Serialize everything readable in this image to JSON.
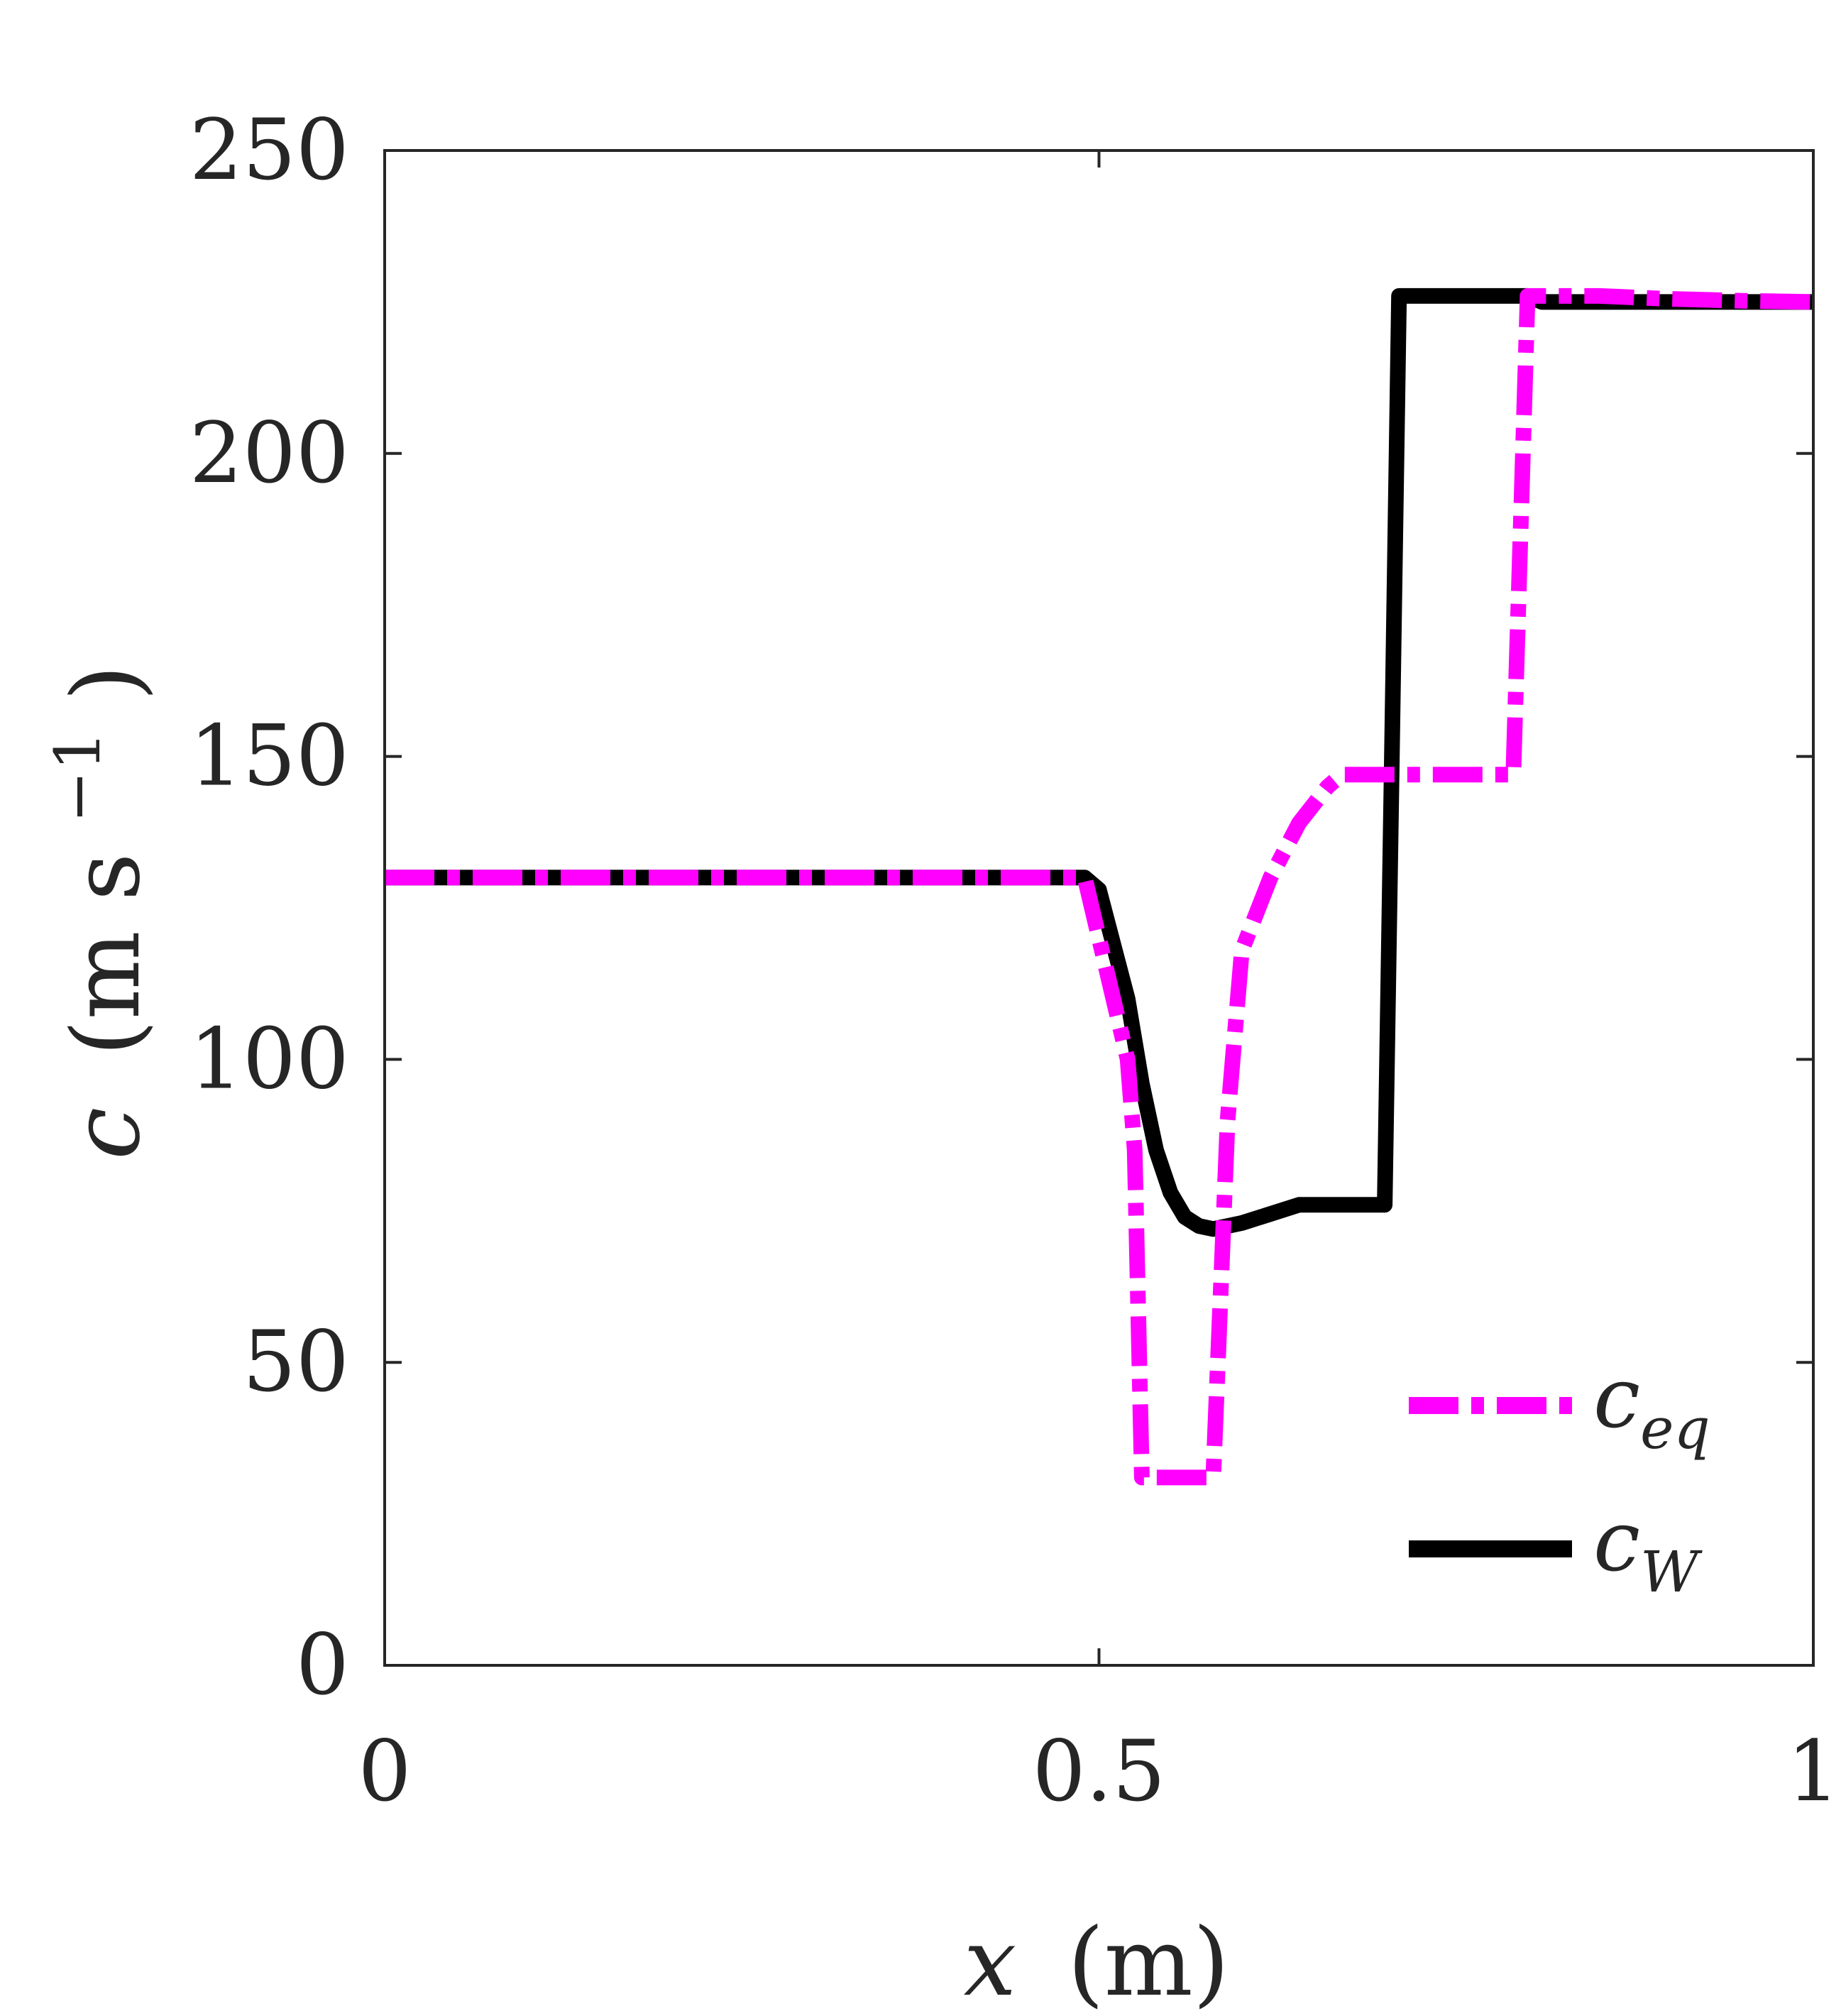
{
  "chart_data": {
    "type": "line",
    "title": "",
    "xlabel": "x (m)",
    "ylabel": "c (m s^-1)",
    "xlim": [
      0,
      1
    ],
    "ylim": [
      0,
      250
    ],
    "xticks": [
      0,
      0.5,
      1
    ],
    "xtick_labels": [
      "0",
      "0.5",
      "1"
    ],
    "yticks": [
      0,
      50,
      100,
      150,
      200,
      250
    ],
    "ytick_labels": [
      "0",
      "50",
      "100",
      "150",
      "200",
      "250"
    ],
    "grid": false,
    "legend_position": "bottom-right",
    "series": [
      {
        "name": "c_eq",
        "style": "dash-dot",
        "color": "#ff00ff",
        "x": [
          0,
          0.49,
          0.52,
          0.525,
          0.53,
          0.58,
          0.59,
          0.6,
          0.62,
          0.64,
          0.66,
          0.67,
          0.79,
          0.8,
          0.85,
          0.9,
          0.95,
          1.0
        ],
        "y": [
          130,
          130,
          100,
          85,
          31,
          31,
          90,
          118,
          130,
          139,
          145,
          147,
          147,
          226,
          226,
          225.5,
          225.2,
          225
        ]
      },
      {
        "name": "c_W",
        "style": "solid",
        "color": "#000000",
        "x": [
          0,
          0.49,
          0.5,
          0.52,
          0.53,
          0.54,
          0.55,
          0.56,
          0.57,
          0.58,
          0.6,
          0.62,
          0.64,
          0.7,
          0.705,
          0.71,
          0.8,
          0.81,
          0.9,
          1.0
        ],
        "y": [
          130,
          130,
          128,
          110,
          96,
          85,
          78,
          74,
          72.5,
          72,
          73,
          74.5,
          76,
          76,
          150,
          226,
          226,
          225,
          225,
          225
        ]
      }
    ]
  },
  "legend": {
    "ceq": {
      "base": "c",
      "sub": "eq"
    },
    "cw": {
      "base": "c",
      "sub": "W"
    }
  },
  "axes": {
    "x": {
      "var": "x",
      "unit": "(m)"
    },
    "y": {
      "var": "c",
      "unit_open": "(m s",
      "unit_exp": "−1",
      "unit_close": ")"
    }
  }
}
